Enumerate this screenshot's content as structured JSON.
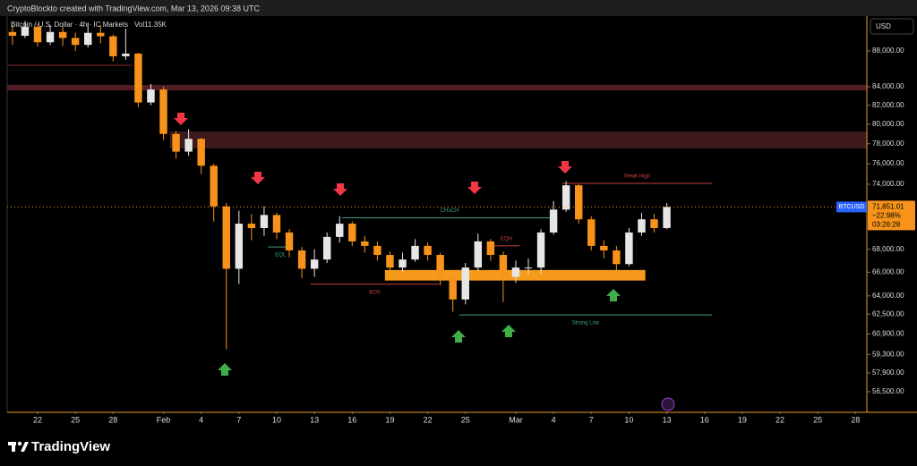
{
  "header": {
    "attribution": "CryptoBlockto created with TradingView.com, Mar 13, 2026 09:38 UTC"
  },
  "chart_data": {
    "type": "candlestick",
    "title": "Bitcoin / U.S. Dollar · 4h · IC Markets",
    "volume": "Vol11.35K",
    "currency": "USD",
    "log_scale": true,
    "up_color": "#e6e6e6",
    "down_color": "#f7931a",
    "ylim": [
      55071,
      92083
    ],
    "yticks": [
      {
        "value": 88000,
        "label": "88,000.00"
      },
      {
        "value": 84000,
        "label": "84,000.00"
      },
      {
        "value": 82000,
        "label": "82,000.00"
      },
      {
        "value": 80000,
        "label": "80,000.00"
      },
      {
        "value": 78000,
        "label": "78,000.00"
      },
      {
        "value": 76000,
        "label": "76,000.00"
      },
      {
        "value": 74000,
        "label": "74,000.00"
      },
      {
        "value": 68000,
        "label": "68,000.00"
      },
      {
        "value": 66000,
        "label": "66,000.00"
      },
      {
        "value": 64000,
        "label": "64,000.00"
      },
      {
        "value": 62500,
        "label": "62,500.00"
      },
      {
        "value": 60900,
        "label": "60,900.00"
      },
      {
        "value": 59300,
        "label": "59,300.00"
      },
      {
        "value": 57900,
        "label": "57,900.00"
      },
      {
        "value": 56500,
        "label": "56,500.00"
      }
    ],
    "xlim": [
      -2.42,
      65.9
    ],
    "xticks": [
      {
        "value": 0,
        "label": "22"
      },
      {
        "value": 3,
        "label": "25"
      },
      {
        "value": 6,
        "label": "28"
      },
      {
        "value": 10,
        "label": "Feb"
      },
      {
        "value": 13,
        "label": "4"
      },
      {
        "value": 16,
        "label": "7"
      },
      {
        "value": 19,
        "label": "10"
      },
      {
        "value": 22,
        "label": "13"
      },
      {
        "value": 25,
        "label": "16"
      },
      {
        "value": 28,
        "label": "19"
      },
      {
        "value": 31,
        "label": "22"
      },
      {
        "value": 34,
        "label": "25"
      },
      {
        "value": 38,
        "label": "Mar"
      },
      {
        "value": 41,
        "label": "4"
      },
      {
        "value": 44,
        "label": "7"
      },
      {
        "value": 47,
        "label": "10"
      },
      {
        "value": 50,
        "label": "13"
      },
      {
        "value": 53,
        "label": "16"
      },
      {
        "value": 56,
        "label": "19"
      },
      {
        "value": 59,
        "label": "22"
      },
      {
        "value": 62,
        "label": "25"
      },
      {
        "value": 65,
        "label": "28"
      }
    ],
    "x": [
      -2,
      -1,
      0,
      1,
      2,
      3,
      4,
      5,
      6,
      7,
      8,
      9,
      10,
      11,
      12,
      13,
      14,
      15,
      16,
      17,
      18,
      19,
      20,
      21,
      22,
      23,
      24,
      25,
      26,
      27,
      28,
      29,
      30,
      31,
      32,
      33,
      34,
      35,
      36,
      37,
      38,
      39,
      40,
      41,
      42,
      43,
      44,
      45,
      46,
      47,
      48,
      49,
      50
    ],
    "open": [
      90200,
      89760,
      90800,
      89000,
      90200,
      89500,
      88700,
      90100,
      89700,
      87400,
      87700,
      82300,
      83700,
      79000,
      77200,
      78500,
      75800,
      71900,
      66300,
      70300,
      69900,
      71100,
      69500,
      67900,
      66300,
      67100,
      69100,
      70300,
      68700,
      68300,
      67500,
      66400,
      67100,
      68300,
      67500,
      65600,
      63700,
      66400,
      68700,
      67500,
      65600,
      66400,
      66400,
      69500,
      71600,
      73900,
      70700,
      68300,
      67900,
      66700,
      69500,
      70700,
      69900
    ],
    "close": [
      89760,
      90800,
      89000,
      90200,
      89500,
      88700,
      90100,
      89700,
      87400,
      87700,
      82300,
      83700,
      79000,
      77200,
      78500,
      75800,
      71900,
      66300,
      70300,
      69900,
      71100,
      69500,
      67900,
      66300,
      67100,
      69100,
      70300,
      68700,
      68300,
      67500,
      66400,
      67100,
      68300,
      67500,
      65600,
      63700,
      66400,
      68700,
      67500,
      65600,
      66400,
      66400,
      69500,
      71600,
      73900,
      70700,
      68300,
      67900,
      66700,
      69500,
      70700,
      69900,
      71851
    ],
    "high": [
      91000,
      91500,
      91200,
      91000,
      90800,
      90100,
      91300,
      91000,
      89900,
      90600,
      87800,
      84300,
      84000,
      79300,
      79500,
      78600,
      76000,
      72200,
      71500,
      71200,
      71900,
      71300,
      69800,
      68200,
      68000,
      69500,
      71000,
      70500,
      69200,
      68700,
      67800,
      67700,
      68900,
      68600,
      67700,
      65800,
      66800,
      69400,
      68900,
      67800,
      67000,
      67200,
      69800,
      72400,
      74300,
      74000,
      71000,
      68800,
      68300,
      69900,
      71300,
      71200,
      72200
    ],
    "low": [
      88700,
      89500,
      88500,
      88700,
      88600,
      88000,
      88400,
      88900,
      86800,
      87000,
      81800,
      82000,
      78400,
      76500,
      76800,
      75000,
      70500,
      59700,
      65000,
      68800,
      69200,
      68900,
      67300,
      65500,
      65600,
      66800,
      68600,
      68300,
      67700,
      67000,
      65800,
      66000,
      66900,
      67000,
      64900,
      62700,
      63300,
      66100,
      67000,
      63500,
      65100,
      65800,
      65900,
      69300,
      71400,
      70300,
      67900,
      67200,
      66000,
      66500,
      69200,
      69500,
      69800
    ],
    "zones": [
      {
        "low": 83610,
        "high": 84200,
        "from": -2.42,
        "to": 65.9,
        "color": "#4f1d22"
      },
      {
        "low": 77530,
        "high": 79250,
        "from": 10.5,
        "to": 65.9,
        "color": "#3f1a1d"
      },
      {
        "low": 65290,
        "high": 66190,
        "from": 27.6,
        "to": 48.3,
        "color": "#f59a1b"
      }
    ],
    "levels": [
      {
        "price": 86380,
        "from": -2.42,
        "to": 7.5,
        "color": "#8b2a2a"
      },
      {
        "price": 70840,
        "from": 24.2,
        "to": 41.3,
        "color": "#3aa17e",
        "label": "CHoCH"
      },
      {
        "price": 74080,
        "from": 41.7,
        "to": 53.6,
        "color": "#c8403f",
        "label": "Weak High"
      },
      {
        "price": 62430,
        "from": 33.5,
        "to": 53.6,
        "color": "#3aa17e",
        "label": "Strong Low"
      },
      {
        "price": 64980,
        "from": 21.7,
        "to": 31.9,
        "color": "#c8403f",
        "label": "BOS"
      },
      {
        "price": 68200,
        "from": 18.3,
        "to": 20.3,
        "color": "#3aa17e",
        "label": "EQL"
      },
      {
        "price": 68300,
        "from": 36.2,
        "to": 38.3,
        "color": "#c8403f",
        "label": "EQH"
      }
    ],
    "last_price": {
      "symbol": "BTCUSD",
      "value": 71851.01,
      "label": "71,851.01",
      "change": {
        "value": -22.98,
        "label": "−22.98%"
      },
      "countdown": "03:26:28"
    }
  },
  "footer": {
    "brand": "TradingView"
  }
}
